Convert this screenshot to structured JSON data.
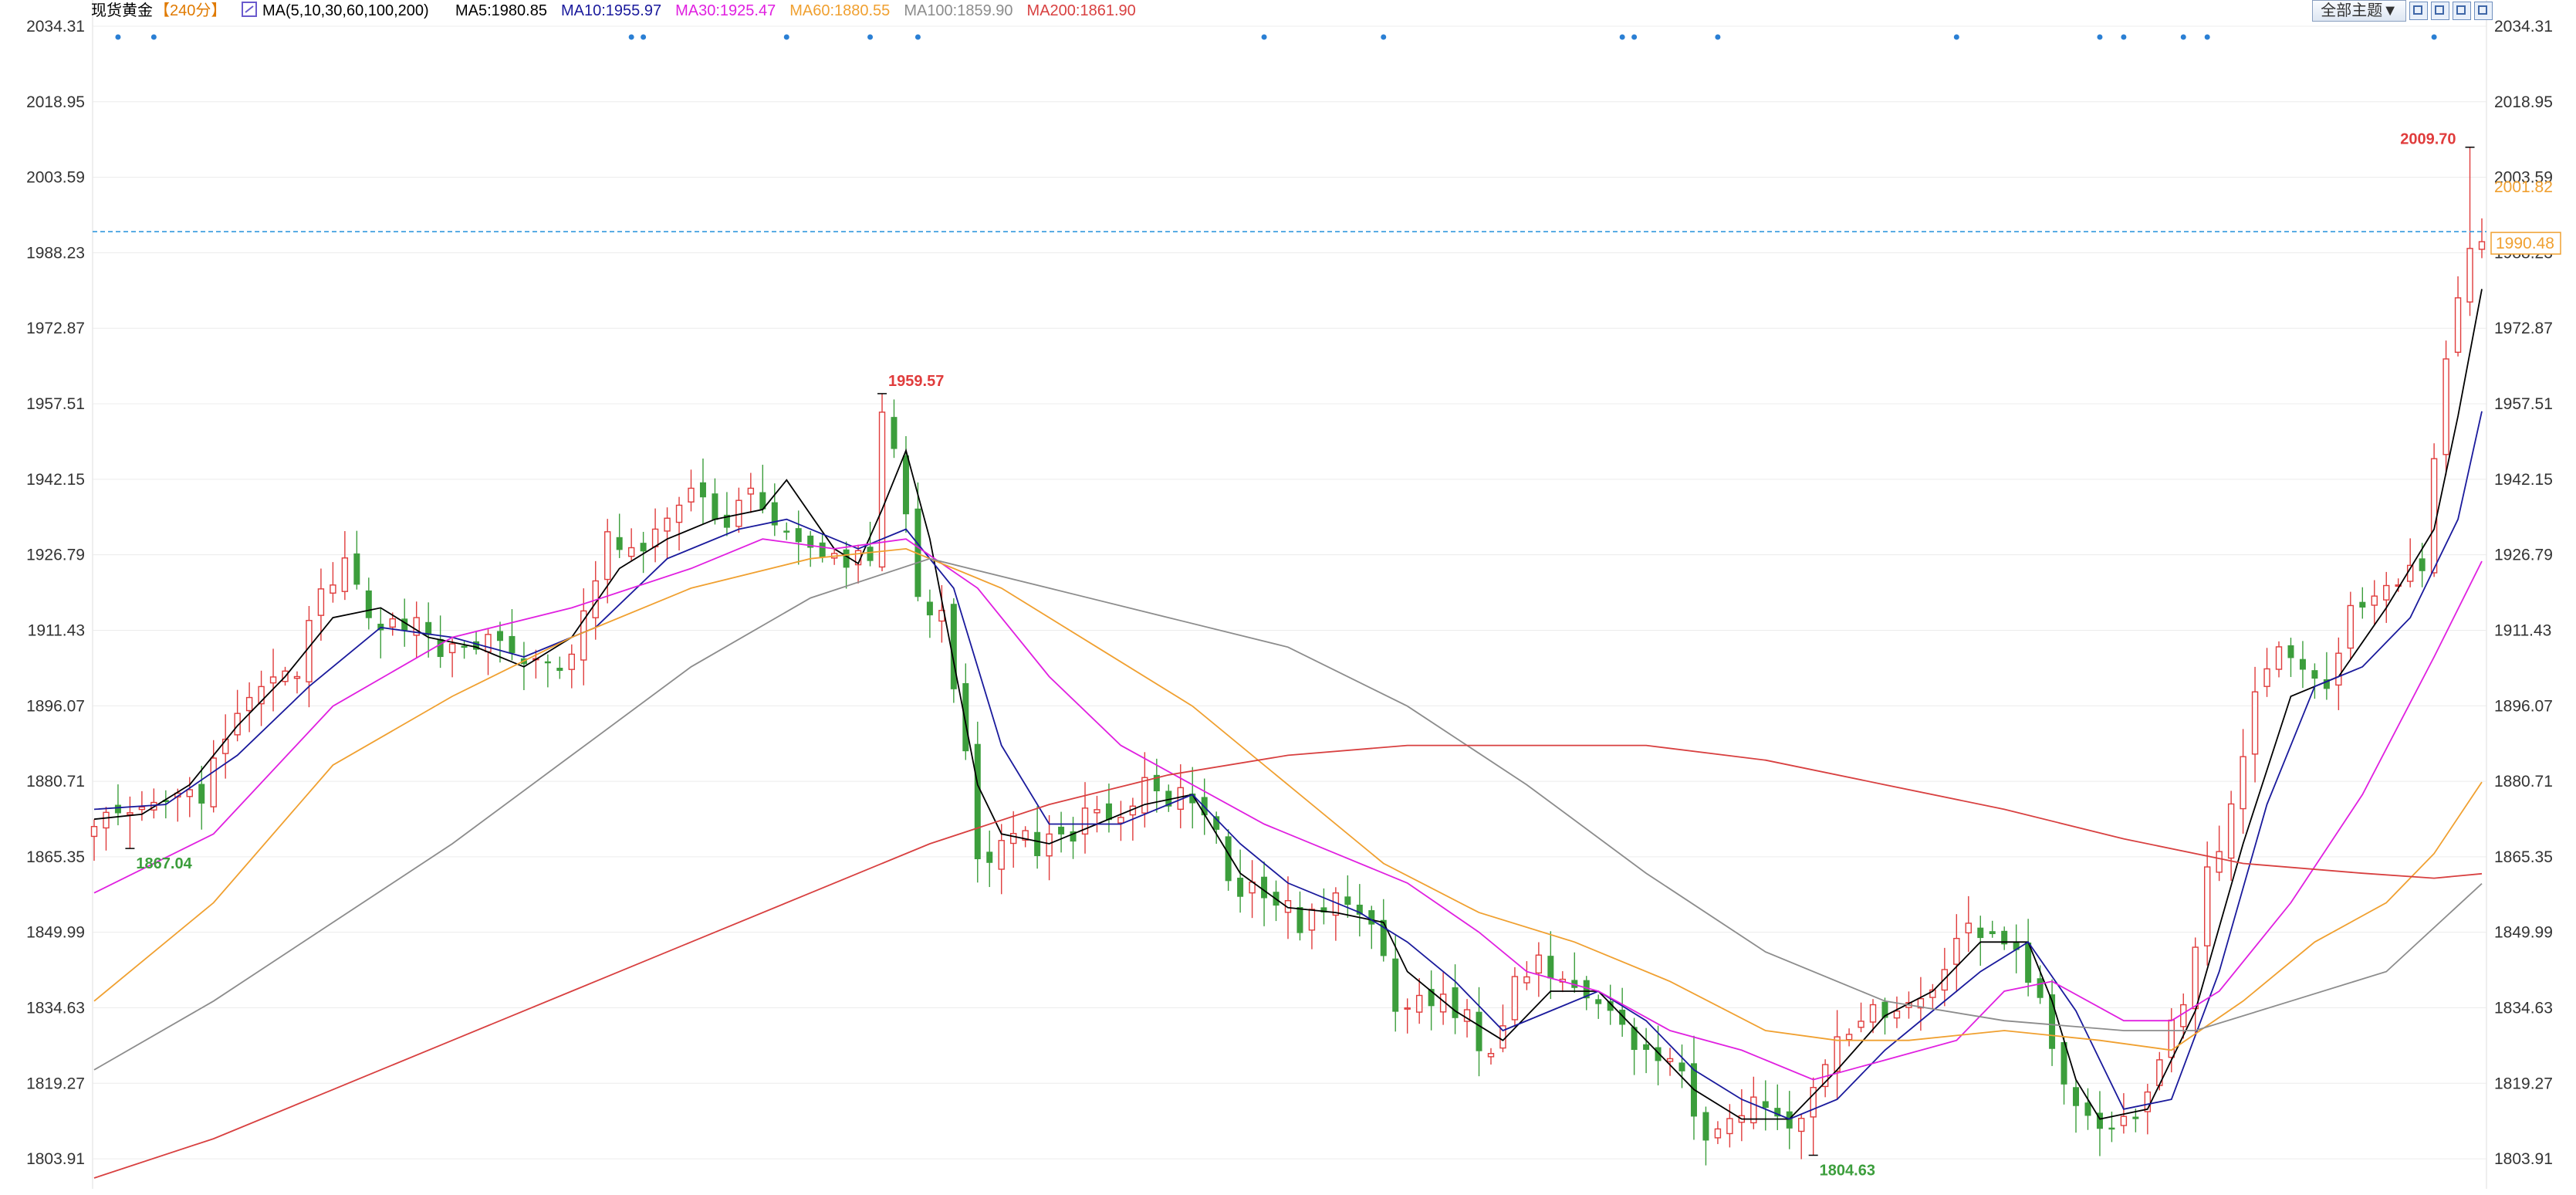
{
  "header": {
    "symbol": "现货黄金",
    "period": "【240分】",
    "ma_label": "MA(5,10,30,60,100,200)",
    "ma_values": [
      {
        "text": "MA5:1980.85",
        "color": "#000000"
      },
      {
        "text": "MA10:1955.97",
        "color": "#1a1a9c"
      },
      {
        "text": "MA30:1925.47",
        "color": "#e020e0"
      },
      {
        "text": "MA60:1880.55",
        "color": "#f0a030"
      },
      {
        "text": "MA100:1859.90",
        "color": "#8c8c8c"
      },
      {
        "text": "MA200:1861.90",
        "color": "#d84040"
      }
    ]
  },
  "toolbar": {
    "theme_label": "全部主题▼",
    "buttons": [
      "zoom-in-icon",
      "zoom-out-icon",
      "play-icon",
      "settings-icon"
    ]
  },
  "price_tag": "1990.48",
  "colors": {
    "up": "#e03c3c",
    "down": "#3c9e3c",
    "grid": "#ececec",
    "dashed": "#3399dd",
    "axis_text": "#333333",
    "event_dot": "#2a7fd4",
    "tag": "#f0a030"
  },
  "chart_data": {
    "type": "candlestick",
    "y_ticks": [
      "2034.31",
      "2018.95",
      "2003.59",
      "1988.23",
      "1972.87",
      "1957.51",
      "1942.15",
      "1926.79",
      "1911.43",
      "1896.07",
      "1880.71",
      "1865.35",
      "1849.99",
      "1834.63",
      "1819.27",
      "1803.91"
    ],
    "y_range": [
      1797.8,
      2034.31
    ],
    "current_price": 1990.48,
    "right_axis_extra": "2001.82",
    "annotations": [
      {
        "text": "2009.70",
        "index": 199,
        "value": 2009.7,
        "kind": "high"
      },
      {
        "text": "1959.57",
        "index": 66,
        "value": 1959.57,
        "kind": "high"
      },
      {
        "text": "1867.04",
        "index": 3,
        "value": 1867.04,
        "kind": "low"
      },
      {
        "text": "1804.63",
        "index": 144,
        "value": 1804.63,
        "kind": "low"
      }
    ],
    "event_markers": [
      2,
      5,
      45,
      46,
      58,
      65,
      69,
      98,
      108,
      128,
      129,
      136,
      156,
      168,
      170,
      175,
      177,
      196
    ],
    "ma_names": [
      "MA5",
      "MA10",
      "MA30",
      "MA60",
      "MA100",
      "MA200"
    ],
    "close_path": [
      [
        0,
        1874
      ],
      [
        3,
        1872
      ],
      [
        6,
        1876
      ],
      [
        9,
        1878
      ],
      [
        11,
        1888
      ],
      [
        13,
        1898
      ],
      [
        15,
        1900
      ],
      [
        17,
        1904
      ],
      [
        19,
        1918
      ],
      [
        21,
        1924
      ],
      [
        23,
        1916
      ],
      [
        25,
        1912
      ],
      [
        27,
        1914
      ],
      [
        29,
        1908
      ],
      [
        31,
        1906
      ],
      [
        33,
        1910
      ],
      [
        35,
        1908
      ],
      [
        37,
        1904
      ],
      [
        39,
        1902
      ],
      [
        41,
        1914
      ],
      [
        43,
        1930
      ],
      [
        45,
        1926
      ],
      [
        47,
        1932
      ],
      [
        49,
        1936
      ],
      [
        51,
        1940
      ],
      [
        53,
        1932
      ],
      [
        55,
        1942
      ],
      [
        57,
        1932
      ],
      [
        59,
        1928
      ],
      [
        61,
        1926
      ],
      [
        63,
        1926
      ],
      [
        65,
        1926
      ],
      [
        66,
        1956
      ],
      [
        67,
        1950
      ],
      [
        68,
        1936
      ],
      [
        69,
        1916
      ],
      [
        71,
        1913
      ],
      [
        73,
        1885
      ],
      [
        74,
        1863
      ],
      [
        76,
        1870
      ],
      [
        79,
        1868
      ],
      [
        82,
        1870
      ],
      [
        84,
        1876
      ],
      [
        86,
        1873
      ],
      [
        88,
        1879
      ],
      [
        90,
        1878
      ],
      [
        92,
        1876
      ],
      [
        94,
        1870
      ],
      [
        95,
        1858
      ],
      [
        97,
        1858
      ],
      [
        99,
        1856
      ],
      [
        101,
        1852
      ],
      [
        103,
        1855
      ],
      [
        105,
        1856
      ],
      [
        107,
        1852
      ],
      [
        109,
        1834
      ],
      [
        111,
        1836
      ],
      [
        113,
        1837
      ],
      [
        115,
        1832
      ],
      [
        117,
        1824
      ],
      [
        119,
        1840
      ],
      [
        121,
        1845
      ],
      [
        123,
        1841
      ],
      [
        125,
        1838
      ],
      [
        127,
        1836
      ],
      [
        129,
        1828
      ],
      [
        131,
        1824
      ],
      [
        133,
        1820
      ],
      [
        135,
        1810
      ],
      [
        137,
        1810
      ],
      [
        139,
        1814
      ],
      [
        141,
        1813
      ],
      [
        143,
        1810
      ],
      [
        145,
        1824
      ],
      [
        147,
        1830
      ],
      [
        149,
        1836
      ],
      [
        151,
        1834
      ],
      [
        153,
        1836
      ],
      [
        155,
        1844
      ],
      [
        157,
        1852
      ],
      [
        159,
        1850
      ],
      [
        161,
        1848
      ],
      [
        163,
        1836
      ],
      [
        165,
        1818
      ],
      [
        167,
        1811
      ],
      [
        169,
        1811
      ],
      [
        171,
        1812
      ],
      [
        173,
        1826
      ],
      [
        175,
        1834
      ],
      [
        177,
        1862
      ],
      [
        179,
        1874
      ],
      [
        181,
        1897
      ],
      [
        183,
        1910
      ],
      [
        185,
        1902
      ],
      [
        187,
        1898
      ],
      [
        189,
        1918
      ],
      [
        191,
        1918
      ],
      [
        193,
        1920
      ],
      [
        195,
        1926
      ],
      [
        197,
        1968
      ],
      [
        198,
        1978
      ],
      [
        199,
        1988
      ],
      [
        200,
        1990.48
      ]
    ],
    "ma_paths": [
      {
        "name": "MA5",
        "color": "#000000",
        "points": [
          [
            0,
            1873
          ],
          [
            4,
            1874
          ],
          [
            8,
            1880
          ],
          [
            12,
            1892
          ],
          [
            16,
            1902
          ],
          [
            20,
            1914
          ],
          [
            24,
            1916
          ],
          [
            28,
            1910
          ],
          [
            32,
            1908
          ],
          [
            36,
            1904
          ],
          [
            40,
            1910
          ],
          [
            44,
            1924
          ],
          [
            48,
            1930
          ],
          [
            52,
            1934
          ],
          [
            56,
            1936
          ],
          [
            58,
            1942
          ],
          [
            62,
            1928
          ],
          [
            64,
            1925
          ],
          [
            66,
            1936
          ],
          [
            68,
            1948
          ],
          [
            70,
            1930
          ],
          [
            72,
            1905
          ],
          [
            74,
            1880
          ],
          [
            76,
            1870
          ],
          [
            80,
            1868
          ],
          [
            84,
            1872
          ],
          [
            88,
            1876
          ],
          [
            92,
            1878
          ],
          [
            96,
            1862
          ],
          [
            100,
            1855
          ],
          [
            104,
            1854
          ],
          [
            108,
            1852
          ],
          [
            110,
            1842
          ],
          [
            114,
            1834
          ],
          [
            118,
            1828
          ],
          [
            122,
            1838
          ],
          [
            126,
            1838
          ],
          [
            130,
            1828
          ],
          [
            134,
            1818
          ],
          [
            138,
            1812
          ],
          [
            142,
            1812
          ],
          [
            146,
            1822
          ],
          [
            150,
            1833
          ],
          [
            154,
            1838
          ],
          [
            158,
            1848
          ],
          [
            162,
            1848
          ],
          [
            164,
            1836
          ],
          [
            166,
            1820
          ],
          [
            168,
            1812
          ],
          [
            172,
            1814
          ],
          [
            176,
            1834
          ],
          [
            180,
            1868
          ],
          [
            184,
            1898
          ],
          [
            188,
            1902
          ],
          [
            192,
            1916
          ],
          [
            196,
            1932
          ],
          [
            198,
            1955
          ],
          [
            200,
            1980.85
          ]
        ]
      },
      {
        "name": "MA10",
        "color": "#1a1a9c",
        "points": [
          [
            0,
            1875
          ],
          [
            6,
            1876
          ],
          [
            12,
            1886
          ],
          [
            18,
            1900
          ],
          [
            24,
            1912
          ],
          [
            30,
            1910
          ],
          [
            36,
            1906
          ],
          [
            42,
            1912
          ],
          [
            48,
            1926
          ],
          [
            54,
            1932
          ],
          [
            58,
            1934
          ],
          [
            64,
            1928
          ],
          [
            68,
            1932
          ],
          [
            72,
            1920
          ],
          [
            76,
            1888
          ],
          [
            80,
            1872
          ],
          [
            86,
            1872
          ],
          [
            92,
            1878
          ],
          [
            96,
            1868
          ],
          [
            100,
            1860
          ],
          [
            106,
            1854
          ],
          [
            110,
            1848
          ],
          [
            114,
            1840
          ],
          [
            118,
            1830
          ],
          [
            122,
            1834
          ],
          [
            126,
            1838
          ],
          [
            130,
            1832
          ],
          [
            134,
            1822
          ],
          [
            138,
            1816
          ],
          [
            142,
            1812
          ],
          [
            146,
            1816
          ],
          [
            150,
            1826
          ],
          [
            154,
            1834
          ],
          [
            158,
            1842
          ],
          [
            162,
            1848
          ],
          [
            166,
            1834
          ],
          [
            170,
            1814
          ],
          [
            174,
            1816
          ],
          [
            178,
            1842
          ],
          [
            182,
            1876
          ],
          [
            186,
            1900
          ],
          [
            190,
            1904
          ],
          [
            194,
            1914
          ],
          [
            198,
            1934
          ],
          [
            200,
            1955.97
          ]
        ]
      },
      {
        "name": "MA30",
        "color": "#e020e0",
        "points": [
          [
            0,
            1858
          ],
          [
            10,
            1870
          ],
          [
            20,
            1896
          ],
          [
            30,
            1910
          ],
          [
            40,
            1916
          ],
          [
            50,
            1924
          ],
          [
            56,
            1930
          ],
          [
            62,
            1928
          ],
          [
            68,
            1930
          ],
          [
            74,
            1920
          ],
          [
            80,
            1902
          ],
          [
            86,
            1888
          ],
          [
            92,
            1880
          ],
          [
            98,
            1872
          ],
          [
            104,
            1866
          ],
          [
            110,
            1860
          ],
          [
            116,
            1850
          ],
          [
            120,
            1842
          ],
          [
            126,
            1838
          ],
          [
            132,
            1830
          ],
          [
            138,
            1826
          ],
          [
            144,
            1820
          ],
          [
            150,
            1824
          ],
          [
            156,
            1828
          ],
          [
            160,
            1838
          ],
          [
            164,
            1840
          ],
          [
            170,
            1832
          ],
          [
            174,
            1832
          ],
          [
            178,
            1838
          ],
          [
            184,
            1856
          ],
          [
            190,
            1878
          ],
          [
            196,
            1906
          ],
          [
            200,
            1925.47
          ]
        ]
      },
      {
        "name": "MA60",
        "color": "#f0a030",
        "points": [
          [
            0,
            1836
          ],
          [
            10,
            1856
          ],
          [
            20,
            1884
          ],
          [
            30,
            1898
          ],
          [
            40,
            1910
          ],
          [
            50,
            1920
          ],
          [
            60,
            1926
          ],
          [
            68,
            1928
          ],
          [
            76,
            1920
          ],
          [
            84,
            1908
          ],
          [
            92,
            1896
          ],
          [
            100,
            1880
          ],
          [
            108,
            1864
          ],
          [
            116,
            1854
          ],
          [
            124,
            1848
          ],
          [
            132,
            1840
          ],
          [
            140,
            1830
          ],
          [
            146,
            1828
          ],
          [
            152,
            1828
          ],
          [
            160,
            1830
          ],
          [
            168,
            1828
          ],
          [
            174,
            1826
          ],
          [
            180,
            1836
          ],
          [
            186,
            1848
          ],
          [
            192,
            1856
          ],
          [
            196,
            1866
          ],
          [
            200,
            1880.55
          ]
        ]
      },
      {
        "name": "MA100",
        "color": "#8c8c8c",
        "points": [
          [
            0,
            1822
          ],
          [
            10,
            1836
          ],
          [
            20,
            1852
          ],
          [
            30,
            1868
          ],
          [
            40,
            1886
          ],
          [
            50,
            1904
          ],
          [
            60,
            1918
          ],
          [
            70,
            1926
          ],
          [
            80,
            1920
          ],
          [
            90,
            1914
          ],
          [
            100,
            1908
          ],
          [
            110,
            1896
          ],
          [
            120,
            1880
          ],
          [
            130,
            1862
          ],
          [
            140,
            1846
          ],
          [
            150,
            1836
          ],
          [
            160,
            1832
          ],
          [
            170,
            1830
          ],
          [
            176,
            1830
          ],
          [
            184,
            1836
          ],
          [
            192,
            1842
          ],
          [
            200,
            1859.9
          ]
        ]
      },
      {
        "name": "MA200",
        "color": "#d84040",
        "points": [
          [
            0,
            1800
          ],
          [
            10,
            1808
          ],
          [
            20,
            1818
          ],
          [
            30,
            1828
          ],
          [
            40,
            1838
          ],
          [
            50,
            1848
          ],
          [
            60,
            1858
          ],
          [
            70,
            1868
          ],
          [
            80,
            1876
          ],
          [
            90,
            1882
          ],
          [
            100,
            1886
          ],
          [
            110,
            1888
          ],
          [
            120,
            1888
          ],
          [
            130,
            1888
          ],
          [
            140,
            1885
          ],
          [
            150,
            1880
          ],
          [
            160,
            1875
          ],
          [
            170,
            1869
          ],
          [
            180,
            1864
          ],
          [
            190,
            1862
          ],
          [
            196,
            1861
          ],
          [
            200,
            1861.9
          ]
        ]
      }
    ]
  }
}
